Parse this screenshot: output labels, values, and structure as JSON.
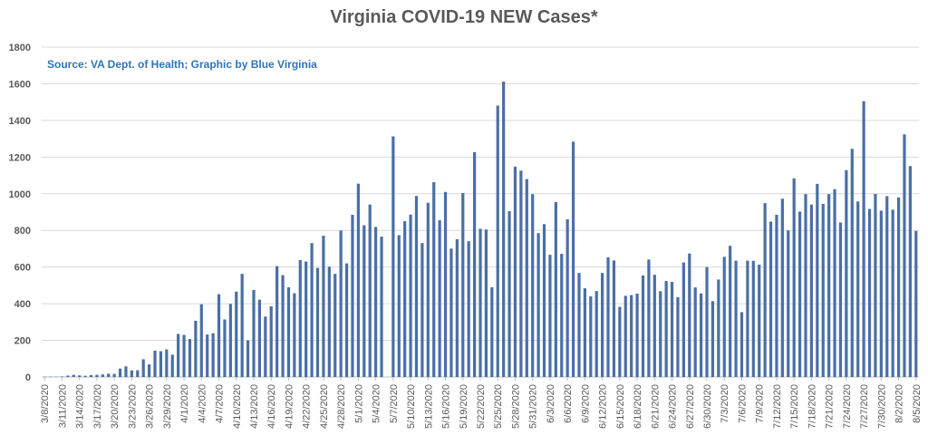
{
  "chart_data": {
    "type": "bar",
    "title": "Virginia COVID-19 NEW Cases*",
    "subtitle": "Source: VA Dept. of Health; Graphic by Blue Virginia",
    "xlabel": "",
    "ylabel": "",
    "ylim": [
      0,
      1800
    ],
    "yticks": [
      0,
      200,
      400,
      600,
      800,
      1000,
      1200,
      1400,
      1600,
      1800
    ],
    "grid": true,
    "bar_color": "#4a6fa5",
    "start_date": "2020-03-08",
    "tick_labels": [
      "3/8/2020",
      "3/11/2020",
      "3/14/2020",
      "3/17/2020",
      "3/20/2020",
      "3/23/2020",
      "3/26/2020",
      "3/29/2020",
      "4/1/2020",
      "4/4/2020",
      "4/7/2020",
      "4/10/2020",
      "4/13/2020",
      "4/16/2020",
      "4/19/2020",
      "4/22/2020",
      "4/25/2020",
      "4/28/2020",
      "5/1/2020",
      "5/4/2020",
      "5/7/2020",
      "5/10/2020",
      "5/13/2020",
      "5/16/2020",
      "5/19/2020",
      "5/22/2020",
      "5/25/2020",
      "5/28/2020",
      "5/31/2020",
      "6/3/2020",
      "6/6/2020",
      "6/9/2020",
      "6/12/2020",
      "6/15/2020",
      "6/18/2020",
      "6/21/2020",
      "6/24/2020",
      "6/27/2020",
      "6/30/2020",
      "7/3/2020",
      "7/6/2020",
      "7/9/2020",
      "7/12/2020",
      "7/15/2020",
      "7/18/2020",
      "7/21/2020",
      "7/24/2020",
      "7/27/2020",
      "7/30/2020",
      "8/2/2020",
      "8/5/2020"
    ],
    "values": [
      2,
      2,
      2,
      3,
      8,
      12,
      9,
      7,
      11,
      12,
      14,
      18,
      17,
      46,
      58,
      36,
      37,
      97,
      69,
      144,
      141,
      151,
      122,
      235,
      230,
      207,
      307,
      397,
      232,
      239,
      452,
      314,
      399,
      466,
      563,
      200,
      475,
      422,
      330,
      386,
      605,
      556,
      490,
      457,
      638,
      630,
      731,
      595,
      771,
      602,
      563,
      800,
      620,
      885,
      1055,
      828,
      941,
      819,
      766,
      0,
      1313,
      774,
      850,
      886,
      988,
      731,
      951,
      1063,
      855,
      1010,
      701,
      752,
      1004,
      741,
      1227,
      809,
      805,
      490,
      1481,
      1612,
      905,
      1148,
      1126,
      1080,
      998,
      785,
      834,
      667,
      955,
      672,
      861,
      1284,
      568,
      484,
      440,
      469,
      568,
      653,
      636,
      383,
      443,
      447,
      455,
      554,
      641,
      558,
      468,
      524,
      519,
      436,
      625,
      674,
      489,
      456,
      600,
      414,
      532,
      656,
      716,
      635,
      354,
      635,
      634,
      613,
      949,
      848,
      885,
      973,
      800,
      1084,
      903,
      998,
      941,
      1054,
      945,
      998,
      1025,
      843,
      1129,
      1245,
      958,
      1505,
      917,
      999,
      908,
      987,
      913,
      980,
      1324,
      1151,
      797
    ]
  }
}
